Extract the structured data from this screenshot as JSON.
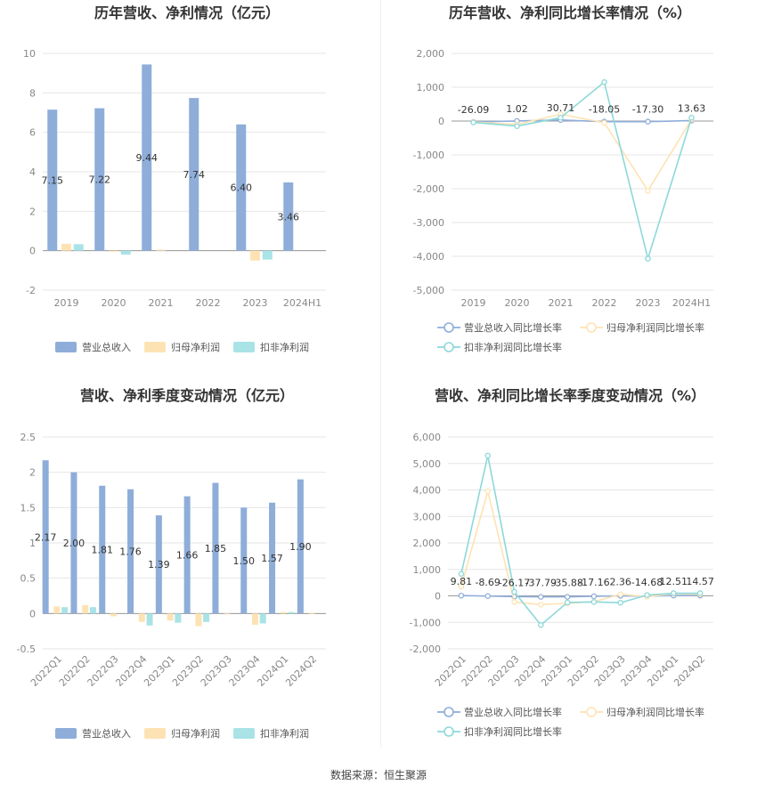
{
  "source_text": "数据来源：恒生聚源",
  "colors": {
    "revenue": "#8eadd9",
    "net_profit": "#fde3b4",
    "deducted": "#a9e3e6",
    "rev_line": "#8eadd9",
    "np_line": "#fde3b4",
    "ded_line": "#8dd8d9"
  },
  "chart_data": [
    {
      "id": "annual-bar",
      "type": "bar",
      "title": "历年营收、净利情况（亿元）",
      "categories": [
        "2019",
        "2020",
        "2021",
        "2022",
        "2023",
        "2024H1"
      ],
      "series": [
        {
          "name": "营业总收入",
          "values": [
            7.15,
            7.22,
            9.44,
            7.74,
            6.4,
            3.46
          ],
          "labels": [
            "7.15",
            "7.22",
            "9.44",
            "7.74",
            "6.40",
            "3.46"
          ]
        },
        {
          "name": "归母净利润",
          "values": [
            0.35,
            -0.05,
            0.05,
            0.0,
            -0.5,
            0.0
          ]
        },
        {
          "name": "扣非净利润",
          "values": [
            0.33,
            -0.2,
            0.0,
            0.0,
            -0.45,
            0.0
          ]
        }
      ],
      "ylim": [
        -2,
        10
      ],
      "yticks": [
        "-2",
        "0",
        "2",
        "4",
        "6",
        "8",
        "10"
      ],
      "legend": "bottom"
    },
    {
      "id": "annual-line",
      "type": "line",
      "title": "历年营收、净利同比增长率情况（%）",
      "categories": [
        "2019",
        "2020",
        "2021",
        "2022",
        "2023",
        "2024H1"
      ],
      "series": [
        {
          "name": "营业总收入同比增长率",
          "values": [
            -26.09,
            1.02,
            30.71,
            -18.05,
            -17.3,
            13.63
          ],
          "labels": [
            "-26.09",
            "1.02",
            "30.71",
            "-18.05",
            "-17.30",
            "13.63"
          ]
        },
        {
          "name": "归母净利润同比增长率",
          "values": [
            -30,
            -100,
            200,
            -50,
            -2060,
            50
          ]
        },
        {
          "name": "扣非净利润同比增长率",
          "values": [
            -40,
            -150,
            100,
            1150,
            -4070,
            100
          ]
        }
      ],
      "ylim": [
        -5000,
        2000
      ],
      "yticks": [
        "-5,000",
        "-4,000",
        "-3,000",
        "-2,000",
        "-1,000",
        "0",
        "1,000",
        "2,000"
      ],
      "legend": "bottom"
    },
    {
      "id": "quarter-bar",
      "type": "bar",
      "title": "营收、净利季度变动情况（亿元）",
      "categories": [
        "2022Q1",
        "2022Q2",
        "2022Q3",
        "2022Q4",
        "2023Q1",
        "2023Q2",
        "2023Q3",
        "2023Q4",
        "2024Q1",
        "2024Q2"
      ],
      "series": [
        {
          "name": "营业总收入",
          "values": [
            2.17,
            2.0,
            1.81,
            1.76,
            1.39,
            1.66,
            1.85,
            1.5,
            1.57,
            1.9
          ],
          "labels": [
            "2.17",
            "2.00",
            "1.81",
            "1.76",
            "1.39",
            "1.66",
            "1.85",
            "1.50",
            "1.57",
            "1.90"
          ]
        },
        {
          "name": "归母净利润",
          "values": [
            0.1,
            0.12,
            -0.04,
            -0.12,
            -0.1,
            -0.18,
            -0.01,
            -0.16,
            0.02,
            0.01
          ]
        },
        {
          "name": "扣非净利润",
          "values": [
            0.09,
            0.09,
            0.0,
            -0.17,
            -0.13,
            -0.12,
            0.0,
            -0.14,
            0.02,
            0.0
          ]
        }
      ],
      "ylim": [
        -0.5,
        2.5
      ],
      "yticks": [
        "-0.5",
        "0",
        "0.5",
        "1",
        "1.5",
        "2",
        "2.5"
      ],
      "legend": "bottom"
    },
    {
      "id": "quarter-line",
      "type": "line",
      "title": "营收、净利同比增长率季度变动情况（%）",
      "categories": [
        "2022Q1",
        "2022Q2",
        "2022Q3",
        "2022Q4",
        "2023Q1",
        "2023Q2",
        "2023Q3",
        "2023Q4",
        "2024Q1",
        "2024Q2"
      ],
      "series": [
        {
          "name": "营业总收入同比增长率",
          "values": [
            9.81,
            -8.69,
            -26.17,
            -37.79,
            -35.88,
            -17.16,
            2.36,
            -14.68,
            12.51,
            14.57
          ],
          "labels": [
            "9.81",
            "-8.69",
            "-26.17",
            "-37.79",
            "-35.88",
            "-17.16",
            "2.36",
            "-14.68",
            "12.51",
            "14.57"
          ]
        },
        {
          "name": "归母净利润同比增长率",
          "values": [
            350,
            3950,
            -230,
            -330,
            -280,
            -220,
            60,
            -30,
            80,
            60
          ]
        },
        {
          "name": "扣非净利润同比增长率",
          "values": [
            830,
            5300,
            150,
            -1100,
            -250,
            -230,
            -260,
            30,
            100,
            100
          ]
        }
      ],
      "ylim": [
        -2000,
        6000
      ],
      "yticks": [
        "-2,000",
        "-1,000",
        "0",
        "1,000",
        "2,000",
        "3,000",
        "4,000",
        "5,000",
        "6,000"
      ],
      "legend": "bottom"
    }
  ]
}
